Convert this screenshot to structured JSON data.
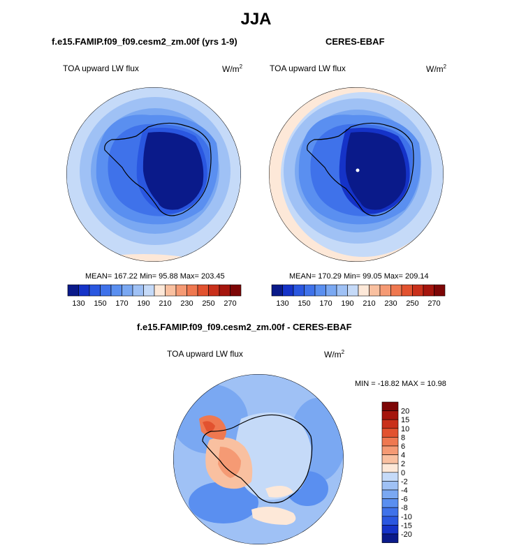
{
  "figure": {
    "title": "JJA"
  },
  "panels": [
    {
      "id": "model",
      "title": "f.e15.FAMIP.f09_f09.cesm2_zm.00f (yrs 1-9)",
      "variable": "TOA upward LW flux",
      "units_base": "W/m",
      "units_exp": "2",
      "stats": "MEAN= 167.22  Min=  95.88  Max= 203.45"
    },
    {
      "id": "obs",
      "title": "CERES-EBAF",
      "variable": "TOA upward LW flux",
      "units_base": "W/m",
      "units_exp": "2",
      "stats": "MEAN= 170.29  Min=  99.05  Max= 209.14"
    },
    {
      "id": "diff",
      "title": "f.e15.FAMIP.f09_f09.cesm2_zm.00f - CERES-EBAF",
      "variable": "TOA upward LW flux",
      "units_base": "W/m",
      "units_exp": "2",
      "stats": "MIN = -18.82 MAX =  10.98"
    }
  ],
  "colorbar_abs": {
    "colors": [
      "#0a1a8a",
      "#1533c8",
      "#2a57e0",
      "#3f72ea",
      "#5a8ff0",
      "#7aa8f2",
      "#9fc1f5",
      "#c5daf8",
      "#fde8d8",
      "#f9c0a0",
      "#f59a74",
      "#ef7850",
      "#e2522f",
      "#c9301b",
      "#a5150d",
      "#7d0606"
    ],
    "tick_labels": [
      "130",
      "150",
      "170",
      "190",
      "210",
      "230",
      "250",
      "270"
    ]
  },
  "colorbar_diff": {
    "colors": [
      "#7d0606",
      "#a5150d",
      "#c9301b",
      "#e2522f",
      "#ef7850",
      "#f59a74",
      "#f9c0a0",
      "#fde8d8",
      "#c5daf8",
      "#9fc1f5",
      "#7aa8f2",
      "#5a8ff0",
      "#3f72ea",
      "#2a57e0",
      "#1533c8",
      "#0a1a8a"
    ],
    "tick_labels": [
      "20",
      "15",
      "10",
      "8",
      "6",
      "4",
      "2",
      "0",
      "-2",
      "-4",
      "-6",
      "-8",
      "-10",
      "-15",
      "-20"
    ]
  }
}
